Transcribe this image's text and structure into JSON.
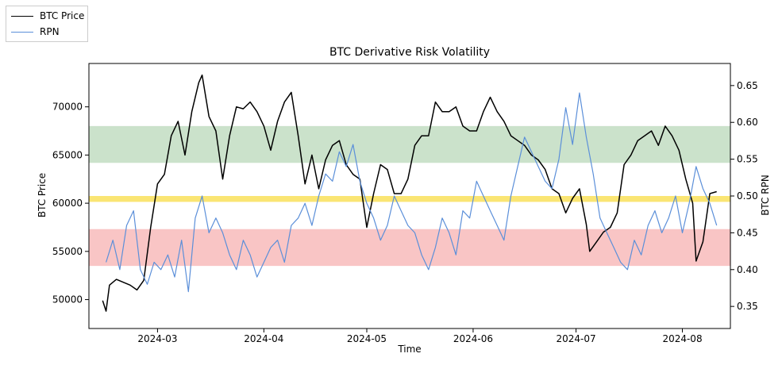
{
  "chart_data": {
    "type": "line",
    "title": "BTC Derivative Risk Volatility",
    "xlabel": "Time",
    "ylabel_left": "BTC Price",
    "ylabel_right": "BTC RPN",
    "x_range": [
      "2024-02-10",
      "2024-08-15"
    ],
    "x_ticks": [
      "2024-03",
      "2024-04",
      "2024-05",
      "2024-06",
      "2024-07",
      "2024-08"
    ],
    "ylim_left": [
      47000,
      74500
    ],
    "yticks_left": [
      50000,
      55000,
      60000,
      65000,
      70000
    ],
    "ylim_right": [
      0.32,
      0.68
    ],
    "yticks_right": [
      0.35,
      0.4,
      0.45,
      0.5,
      0.55,
      0.6,
      0.65
    ],
    "grid": false,
    "legend_position": "top-left",
    "bands": [
      {
        "axis": "right",
        "from": 0.545,
        "to": 0.595,
        "color": "#2e8b2e",
        "opacity": 0.25
      },
      {
        "axis": "right",
        "from": 0.492,
        "to": 0.5,
        "color": "#f5d000",
        "opacity": 0.55
      },
      {
        "axis": "right",
        "from": 0.405,
        "to": 0.455,
        "color": "#e83030",
        "opacity": 0.28
      }
    ],
    "series": [
      {
        "name": "BTC Price",
        "axis": "left",
        "color": "#000000",
        "x": [
          "2024-02-14",
          "2024-02-15",
          "2024-02-16",
          "2024-02-18",
          "2024-02-20",
          "2024-02-22",
          "2024-02-24",
          "2024-02-26",
          "2024-02-28",
          "2024-03-01",
          "2024-03-03",
          "2024-03-05",
          "2024-03-07",
          "2024-03-09",
          "2024-03-11",
          "2024-03-13",
          "2024-03-14",
          "2024-03-16",
          "2024-03-18",
          "2024-03-20",
          "2024-03-22",
          "2024-03-24",
          "2024-03-26",
          "2024-03-28",
          "2024-03-30",
          "2024-04-01",
          "2024-04-03",
          "2024-04-05",
          "2024-04-07",
          "2024-04-09",
          "2024-04-11",
          "2024-04-13",
          "2024-04-15",
          "2024-04-17",
          "2024-04-19",
          "2024-04-21",
          "2024-04-23",
          "2024-04-25",
          "2024-04-27",
          "2024-04-29",
          "2024-05-01",
          "2024-05-03",
          "2024-05-05",
          "2024-05-07",
          "2024-05-09",
          "2024-05-11",
          "2024-05-13",
          "2024-05-15",
          "2024-05-17",
          "2024-05-19",
          "2024-05-21",
          "2024-05-23",
          "2024-05-25",
          "2024-05-27",
          "2024-05-29",
          "2024-05-31",
          "2024-06-02",
          "2024-06-04",
          "2024-06-06",
          "2024-06-08",
          "2024-06-10",
          "2024-06-12",
          "2024-06-14",
          "2024-06-16",
          "2024-06-18",
          "2024-06-20",
          "2024-06-22",
          "2024-06-24",
          "2024-06-26",
          "2024-06-28",
          "2024-06-30",
          "2024-07-02",
          "2024-07-04",
          "2024-07-05",
          "2024-07-07",
          "2024-07-09",
          "2024-07-11",
          "2024-07-13",
          "2024-07-15",
          "2024-07-17",
          "2024-07-19",
          "2024-07-21",
          "2024-07-23",
          "2024-07-25",
          "2024-07-27",
          "2024-07-29",
          "2024-07-31",
          "2024-08-02",
          "2024-08-04",
          "2024-08-05",
          "2024-08-07",
          "2024-08-09",
          "2024-08-11"
        ],
        "values": [
          49900,
          48800,
          51500,
          52100,
          51800,
          51500,
          51000,
          52000,
          57500,
          62000,
          63000,
          67000,
          68500,
          65000,
          69500,
          72500,
          73300,
          69000,
          67500,
          62500,
          67000,
          70000,
          69800,
          70500,
          69500,
          68000,
          65500,
          68500,
          70500,
          71500,
          67000,
          62000,
          65000,
          61500,
          64500,
          66000,
          66500,
          64000,
          63000,
          62500,
          57500,
          61000,
          64000,
          63500,
          61000,
          61000,
          62500,
          66000,
          67000,
          67000,
          70500,
          69500,
          69500,
          70000,
          68000,
          67500,
          67500,
          69500,
          71000,
          69500,
          68500,
          67000,
          66500,
          66000,
          65000,
          64500,
          63500,
          61500,
          61000,
          59000,
          60500,
          61500,
          57800,
          55000,
          56000,
          57000,
          57500,
          59000,
          64000,
          65000,
          66500,
          67000,
          67500,
          66000,
          68000,
          67000,
          65500,
          62500,
          60000,
          54000,
          56000,
          61000,
          61200
        ]
      },
      {
        "name": "RPN",
        "axis": "right",
        "color": "#5b8fd9",
        "x": [
          "2024-02-15",
          "2024-02-17",
          "2024-02-19",
          "2024-02-21",
          "2024-02-23",
          "2024-02-25",
          "2024-02-27",
          "2024-02-29",
          "2024-03-02",
          "2024-03-04",
          "2024-03-06",
          "2024-03-08",
          "2024-03-10",
          "2024-03-12",
          "2024-03-14",
          "2024-03-16",
          "2024-03-18",
          "2024-03-20",
          "2024-03-22",
          "2024-03-24",
          "2024-03-26",
          "2024-03-28",
          "2024-03-30",
          "2024-04-01",
          "2024-04-03",
          "2024-04-05",
          "2024-04-07",
          "2024-04-09",
          "2024-04-11",
          "2024-04-13",
          "2024-04-15",
          "2024-04-17",
          "2024-04-19",
          "2024-04-21",
          "2024-04-23",
          "2024-04-25",
          "2024-04-27",
          "2024-04-29",
          "2024-05-01",
          "2024-05-03",
          "2024-05-05",
          "2024-05-07",
          "2024-05-09",
          "2024-05-11",
          "2024-05-13",
          "2024-05-15",
          "2024-05-17",
          "2024-05-19",
          "2024-05-21",
          "2024-05-23",
          "2024-05-25",
          "2024-05-27",
          "2024-05-29",
          "2024-05-31",
          "2024-06-02",
          "2024-06-04",
          "2024-06-06",
          "2024-06-08",
          "2024-06-10",
          "2024-06-12",
          "2024-06-14",
          "2024-06-16",
          "2024-06-18",
          "2024-06-20",
          "2024-06-22",
          "2024-06-24",
          "2024-06-26",
          "2024-06-28",
          "2024-06-30",
          "2024-07-02",
          "2024-07-04",
          "2024-07-06",
          "2024-07-08",
          "2024-07-10",
          "2024-07-12",
          "2024-07-14",
          "2024-07-16",
          "2024-07-18",
          "2024-07-20",
          "2024-07-22",
          "2024-07-24",
          "2024-07-26",
          "2024-07-28",
          "2024-07-30",
          "2024-08-01",
          "2024-08-03",
          "2024-08-05",
          "2024-08-07",
          "2024-08-09",
          "2024-08-11"
        ],
        "values": [
          0.41,
          0.44,
          0.4,
          0.46,
          0.48,
          0.4,
          0.38,
          0.41,
          0.4,
          0.42,
          0.39,
          0.44,
          0.37,
          0.47,
          0.5,
          0.45,
          0.47,
          0.45,
          0.42,
          0.4,
          0.44,
          0.42,
          0.39,
          0.41,
          0.43,
          0.44,
          0.41,
          0.46,
          0.47,
          0.49,
          0.46,
          0.5,
          0.53,
          0.52,
          0.56,
          0.54,
          0.57,
          0.52,
          0.49,
          0.47,
          0.44,
          0.46,
          0.5,
          0.48,
          0.46,
          0.45,
          0.42,
          0.4,
          0.43,
          0.47,
          0.45,
          0.42,
          0.48,
          0.47,
          0.52,
          0.5,
          0.48,
          0.46,
          0.44,
          0.5,
          0.54,
          0.58,
          0.56,
          0.54,
          0.52,
          0.51,
          0.55,
          0.62,
          0.57,
          0.64,
          0.58,
          0.53,
          0.47,
          0.45,
          0.43,
          0.41,
          0.4,
          0.44,
          0.42,
          0.46,
          0.48,
          0.45,
          0.47,
          0.5,
          0.45,
          0.49,
          0.54,
          0.51,
          0.49,
          0.46
        ]
      }
    ]
  }
}
